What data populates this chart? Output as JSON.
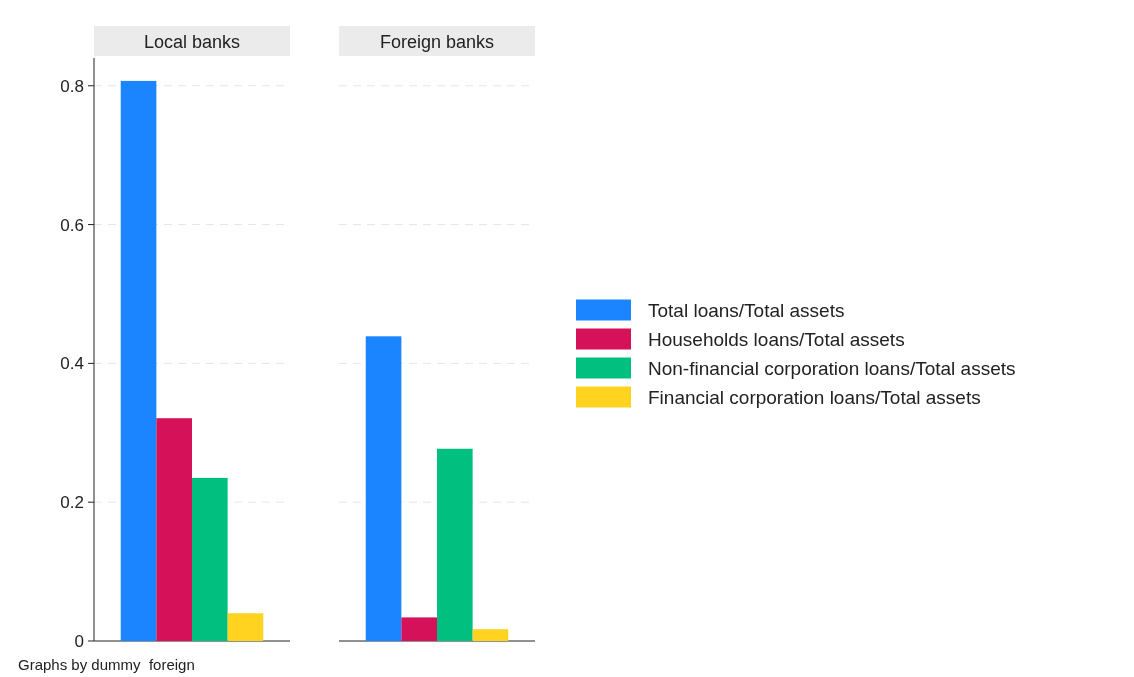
{
  "chart_data": {
    "type": "bar",
    "categories": [
      "Local banks",
      "Foreign banks"
    ],
    "series": [
      {
        "name": "Total loans/Total assets",
        "color": "#1a85ff",
        "values": [
          0.807,
          0.439
        ]
      },
      {
        "name": "Households loans/Total assets",
        "color": "#d41159",
        "values": [
          0.321,
          0.034
        ]
      },
      {
        "name": "Non-financial corporation loans/Total assets",
        "color": "#00bf7f",
        "values": [
          0.235,
          0.277
        ]
      },
      {
        "name": "Financial corporation loans/Total assets",
        "color": "#ffd320",
        "values": [
          0.04,
          0.017
        ]
      }
    ],
    "ylim": [
      0,
      0.84
    ],
    "yticks": [
      0,
      0.2,
      0.4,
      0.6,
      0.8
    ],
    "grid": "y",
    "legend": "right",
    "annotations": [
      "Graphs by dummy  foreign"
    ]
  }
}
